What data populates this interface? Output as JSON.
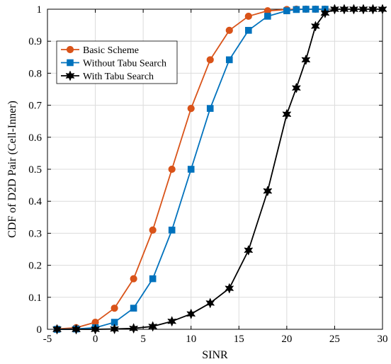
{
  "chart_data": {
    "type": "line",
    "title": "",
    "xlabel": "SINR",
    "ylabel": "CDF of D2D Pair (Cell-Inner)",
    "xlim": [
      -5,
      30
    ],
    "ylim": [
      0,
      1
    ],
    "xticks": [
      -5,
      0,
      5,
      10,
      15,
      20,
      25,
      30
    ],
    "yticks": [
      0,
      0.1,
      0.2,
      0.3,
      0.4,
      0.5,
      0.6,
      0.7,
      0.8,
      0.9,
      1
    ],
    "grid": true,
    "legend_position": "top-left",
    "series": [
      {
        "name": "Basic Scheme",
        "color": "#d95319",
        "marker": "circle",
        "x": [
          -4,
          -2,
          0,
          2,
          4,
          6,
          8,
          10,
          12,
          14,
          16,
          18,
          20,
          21,
          22,
          23,
          24
        ],
        "y": [
          0.001,
          0.005,
          0.022,
          0.066,
          0.158,
          0.31,
          0.5,
          0.69,
          0.842,
          0.934,
          0.978,
          0.995,
          0.999,
          1.0,
          1.0,
          1.0,
          1.0
        ]
      },
      {
        "name": "Without Tabu Search",
        "color": "#0072bd",
        "marker": "square",
        "x": [
          -4,
          -2,
          0,
          2,
          4,
          6,
          8,
          10,
          12,
          14,
          16,
          18,
          20,
          21,
          22,
          23,
          24
        ],
        "y": [
          0.0,
          0.001,
          0.005,
          0.022,
          0.066,
          0.158,
          0.31,
          0.5,
          0.69,
          0.842,
          0.934,
          0.978,
          0.995,
          0.999,
          1.0,
          1.0,
          1.0
        ]
      },
      {
        "name": "With Tabu Search",
        "color": "#000000",
        "marker": "hexagram",
        "x": [
          -4,
          -2,
          0,
          2,
          4,
          6,
          8,
          10,
          12,
          14,
          16,
          18,
          20,
          21,
          22,
          23,
          24,
          25,
          26,
          27,
          28,
          29,
          30
        ],
        "y": [
          0.0,
          0.0,
          0.0,
          0.001,
          0.003,
          0.009,
          0.025,
          0.048,
          0.082,
          0.128,
          0.247,
          0.432,
          0.672,
          0.754,
          0.842,
          0.947,
          0.988,
          1.0,
          1.0,
          1.0,
          1.0,
          1.0,
          1.0
        ]
      }
    ]
  }
}
